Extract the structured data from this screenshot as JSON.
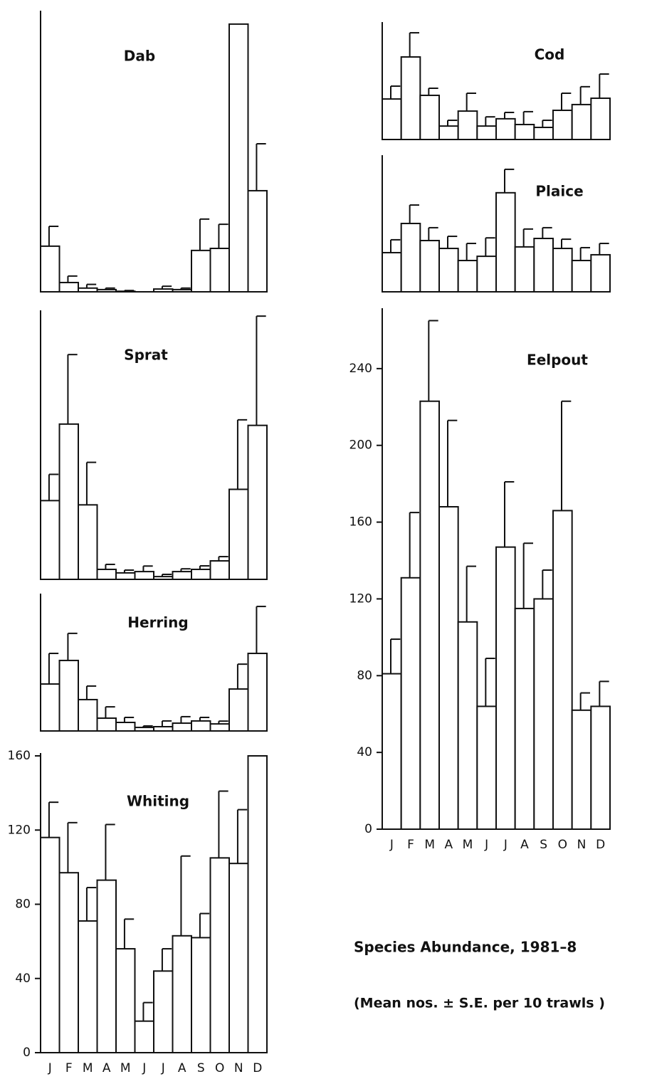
{
  "title": "Species Abundance, 1981–8",
  "note": "(Mean nos. ± S.E. per 10 trawls )",
  "chart_data": [
    {
      "type": "bar",
      "title": "Dab",
      "ylim": [
        0,
        150
      ],
      "values": [
        24.6,
        5,
        2,
        1.2,
        0.3,
        0,
        1.5,
        1.2,
        22.3,
        23.4,
        144.3,
        54.5
      ],
      "errors": [
        10.7,
        3.5,
        2,
        0.8,
        0.4,
        0,
        1.5,
        0.8,
        16.9,
        13,
        null,
        25.3
      ]
    },
    {
      "type": "bar",
      "title": "Sprat",
      "ylim": [
        0,
        144
      ],
      "values": [
        42.6,
        84,
        40.3,
        5.4,
        3.5,
        4.2,
        1.5,
        4.2,
        5.4,
        10,
        48.7,
        83.3
      ],
      "errors": [
        14.2,
        37.6,
        23,
        2.7,
        1.5,
        3,
        1.2,
        1.5,
        1.9,
        2.3,
        37.6,
        59.1
      ]
    },
    {
      "type": "bar",
      "title": "Herring",
      "ylim": [
        0,
        72.5
      ],
      "values": [
        25.3,
        38,
        16.9,
        6.9,
        4.6,
        1.9,
        2.3,
        4.2,
        5.4,
        3.8,
        22.6,
        41.8
      ],
      "errors": [
        16.5,
        14.6,
        7.3,
        6.1,
        2.7,
        0.8,
        3.1,
        3.5,
        1.9,
        1.5,
        13.4,
        25.3
      ]
    },
    {
      "type": "bar",
      "title": "Whiting",
      "ylim": [
        0,
        160
      ],
      "yticks": [
        0,
        40,
        80,
        120,
        160
      ],
      "categories": [
        "J",
        "F",
        "M",
        "A",
        "M",
        "J",
        "J",
        "A",
        "S",
        "O",
        "N",
        "D"
      ],
      "values": [
        116,
        97,
        71,
        93,
        56,
        17,
        44,
        63,
        62,
        105,
        102,
        160
      ],
      "errors": [
        19,
        27,
        18,
        30,
        16,
        10,
        12,
        43,
        13,
        36,
        29,
        null
      ]
    },
    {
      "type": "bar",
      "title": "Cod",
      "ylim": [
        0,
        59.7
      ],
      "values": [
        21.1,
        43,
        23,
        7,
        14.8,
        7,
        10.8,
        7.8,
        6.3,
        15.2,
        18.2,
        21.5
      ],
      "errors": [
        6.7,
        12.6,
        3.7,
        3,
        9.3,
        4.8,
        3.3,
        6.7,
        3.7,
        8.9,
        9.3,
        12.6
      ]
    },
    {
      "type": "bar",
      "title": "Plaice",
      "ylim": [
        0,
        69.7
      ],
      "values": [
        20.4,
        35.6,
        26.7,
        22.6,
        16.3,
        18.5,
        51.6,
        23.4,
        27.8,
        22.6,
        16.3,
        19.3
      ],
      "errors": [
        6.7,
        9.6,
        6.7,
        6.3,
        8.9,
        9.6,
        12.2,
        9.3,
        5.6,
        4.8,
        6.7,
        5.9
      ]
    },
    {
      "type": "bar",
      "title": "Eelpout",
      "ylim": [
        0,
        270
      ],
      "yticks": [
        0,
        40,
        80,
        120,
        160,
        200,
        240
      ],
      "categories": [
        "J",
        "F",
        "M",
        "A",
        "M",
        "J",
        "J",
        "A",
        "S",
        "O",
        "N",
        "D"
      ],
      "values": [
        81,
        131,
        223,
        168,
        108,
        64,
        147,
        115,
        120,
        166,
        62,
        64
      ],
      "errors": [
        18,
        34,
        42,
        45,
        29,
        25,
        34,
        34,
        15,
        57,
        9,
        13
      ]
    }
  ]
}
